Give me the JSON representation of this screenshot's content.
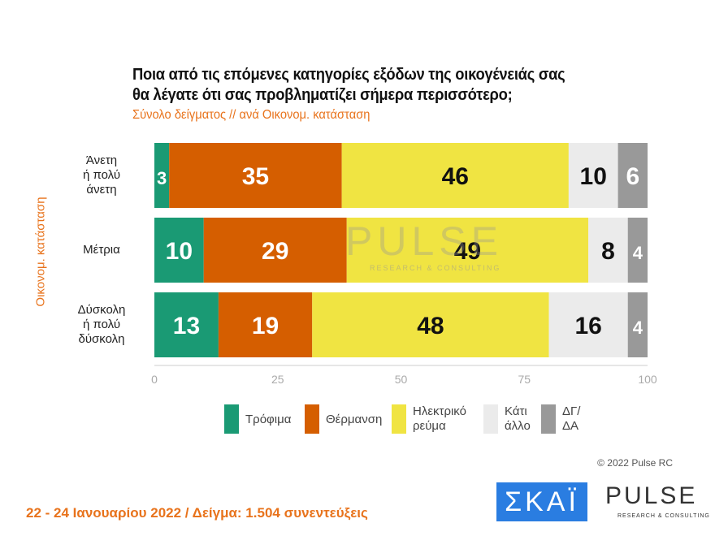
{
  "header": {
    "title_line1": "Ποια από τις επόμενες κατηγορίες εξόδων της οικογένειάς σας",
    "title_line2": "θα λέγατε ότι σας προβληματίζει σήμερα περισσότερο;",
    "subtitle": "Σύνολο δείγματος // ανά Οικονομ. κατάσταση"
  },
  "chart_data": {
    "type": "bar",
    "stacked": true,
    "orientation": "horizontal",
    "ylabel": "Οικονομ. κατάσταση",
    "categories": [
      [
        "Άνετη",
        "ή πολύ",
        "άνετη"
      ],
      [
        "Μέτρια"
      ],
      [
        "Δύσκολη",
        "ή πολύ",
        "δύσκολη"
      ]
    ],
    "xlim": [
      0,
      100
    ],
    "xticks": [
      "0",
      "25",
      "50",
      "75",
      "100"
    ],
    "series": [
      {
        "name": "Τρόφιμα",
        "color": "#1a9a74",
        "values": [
          3,
          10,
          13
        ]
      },
      {
        "name": "Θέρμανση",
        "color": "#d55e00",
        "values": [
          35,
          29,
          19
        ]
      },
      {
        "name": "Ηλεκτρικό ρεύμα",
        "color": "#f0e442",
        "values": [
          46,
          49,
          48
        ]
      },
      {
        "name": "Κάτι άλλο",
        "color": "#ebebeb",
        "values": [
          10,
          8,
          16
        ]
      },
      {
        "name": "ΔΓ/ΔΑ",
        "color": "#999999",
        "values": [
          6,
          4,
          4
        ]
      }
    ],
    "legend_position": "bottom",
    "grid": false
  },
  "legend": [
    [
      "Τρόφιμα"
    ],
    [
      "Θέρμανση"
    ],
    [
      "Ηλεκτρικό",
      "ρεύμα"
    ],
    [
      "Κάτι",
      "άλλο"
    ],
    [
      "ΔΓ/",
      "ΔΑ"
    ]
  ],
  "watermark": {
    "main": "PULSE",
    "sub": "RESEARCH & CONSULTING"
  },
  "footer": {
    "copyright": "© 2022 Pulse RC",
    "note": "22 - 24  Ιανουαρίου  2022  /  Δείγμα:  1.504 συνεντεύξεις",
    "logo_skai": "ΣΚΑΪ",
    "logo_pulse": "PULSE",
    "logo_pulse_sub": "RESEARCH & CONSULTING"
  }
}
